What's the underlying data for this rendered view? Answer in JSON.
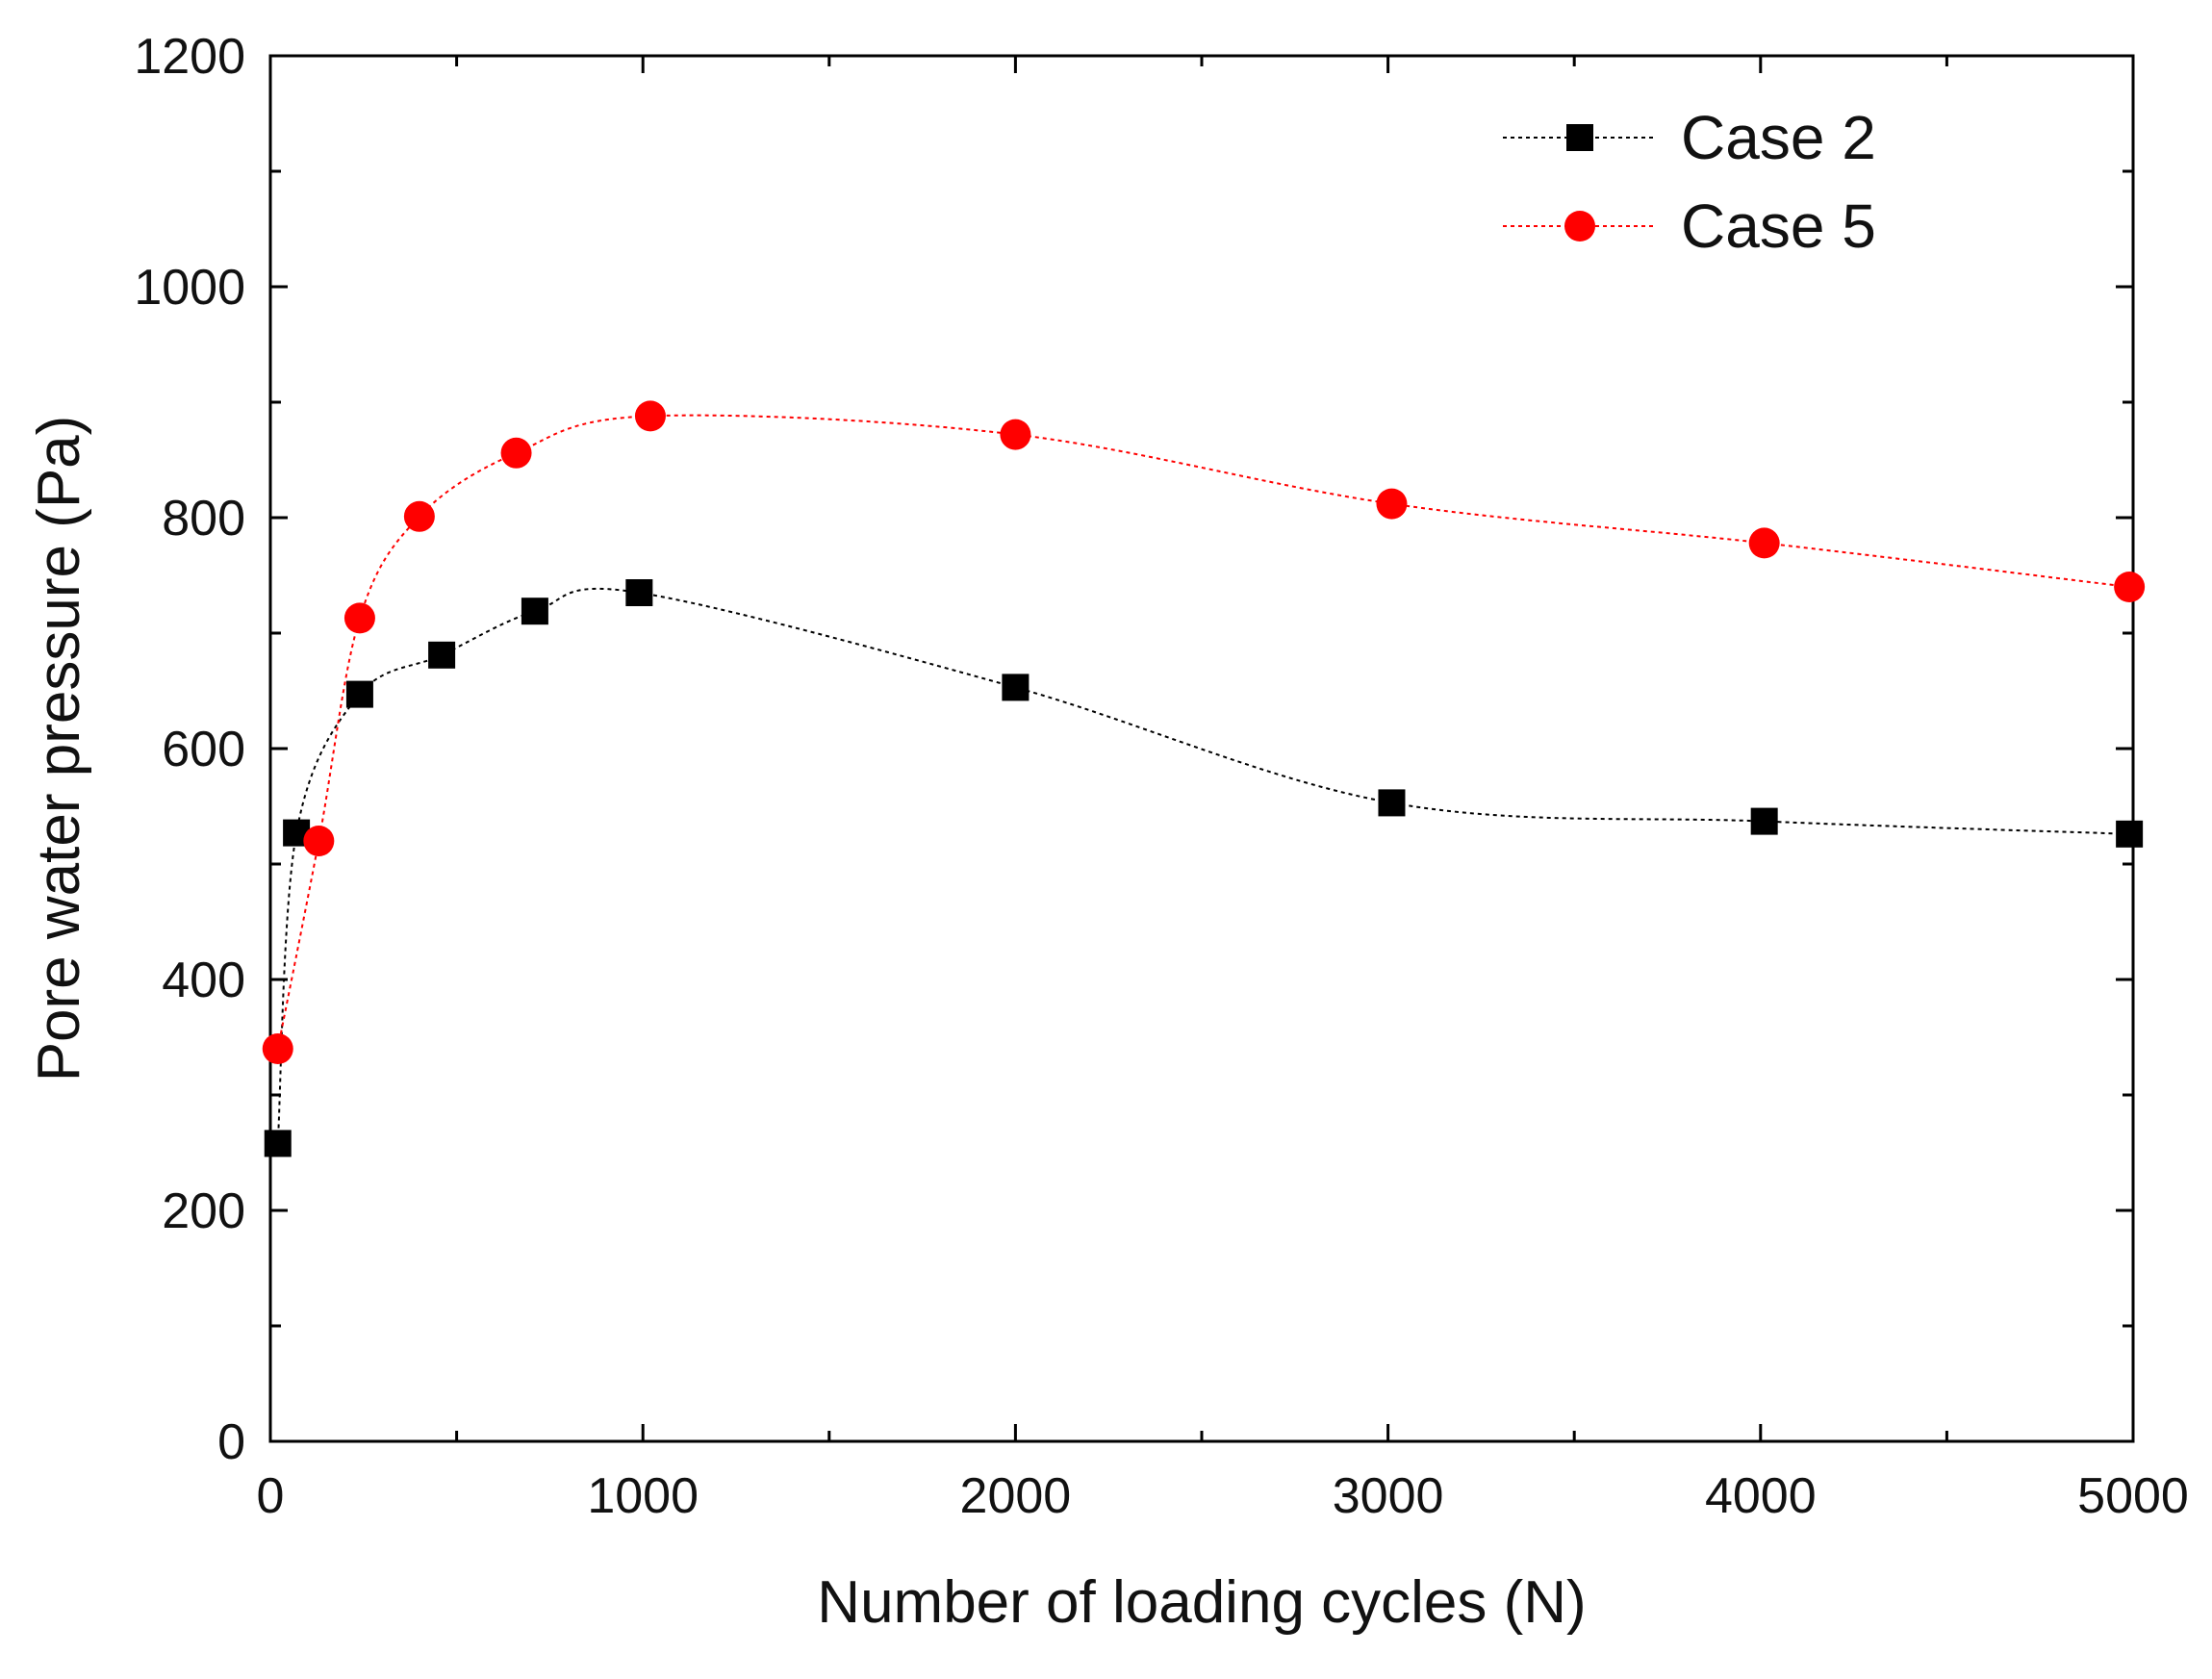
{
  "chart_data": {
    "type": "line",
    "xlabel": "Number of loading cycles (N)",
    "ylabel": "Pore water pressure (Pa)",
    "xlim": [
      0,
      5000
    ],
    "ylim": [
      0,
      1200
    ],
    "x_ticks": [
      0,
      1000,
      2000,
      3000,
      4000,
      5000
    ],
    "y_ticks": [
      0,
      200,
      400,
      600,
      800,
      1000,
      1200
    ],
    "x_tick_labels": [
      "0",
      "1000",
      "2000",
      "3000",
      "4000",
      "5000"
    ],
    "y_tick_labels": [
      "0",
      "200",
      "400",
      "600",
      "800",
      "1000",
      "1200"
    ],
    "grid": false,
    "legend_position": "top-right",
    "series": [
      {
        "name": "Case 2",
        "marker": "square",
        "color": "#000000",
        "line_style": "dotted",
        "x": [
          20,
          70,
          240,
          460,
          710,
          990,
          2000,
          3010,
          4010,
          4990
        ],
        "y": [
          258,
          527,
          647,
          681,
          719,
          735,
          653,
          553,
          537,
          526
        ]
      },
      {
        "name": "Case 5",
        "marker": "circle",
        "color": "#ff0000",
        "line_style": "dotted",
        "x": [
          20,
          130,
          240,
          400,
          660,
          1020,
          2000,
          3010,
          4010,
          4990
        ],
        "y": [
          340,
          520,
          713,
          801,
          856,
          888,
          872,
          812,
          778,
          740
        ]
      }
    ]
  }
}
